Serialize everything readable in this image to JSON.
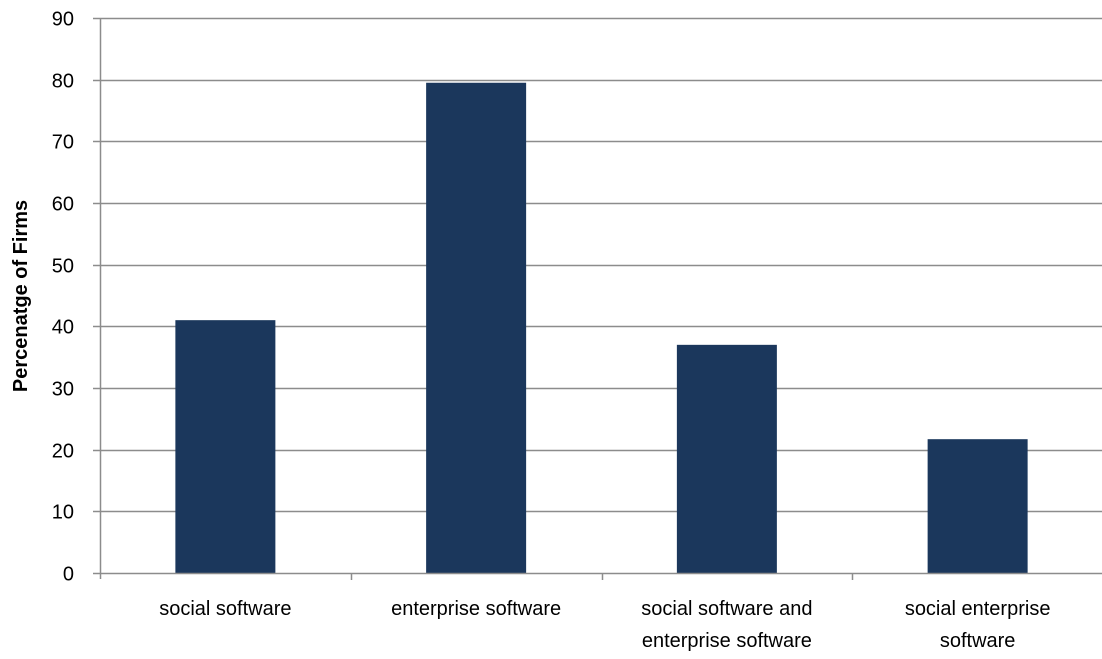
{
  "chart_data": {
    "type": "bar",
    "categories": [
      "social software",
      "enterprise software",
      "social software and enterprise software",
      "social enterprise software"
    ],
    "category_label_lines": [
      [
        "social software"
      ],
      [
        "enterprise software"
      ],
      [
        "social software and",
        "enterprise software"
      ],
      [
        "social enterprise",
        "software"
      ]
    ],
    "values": [
      41,
      79.5,
      37,
      21.7
    ],
    "title": "",
    "xlabel": "",
    "ylabel": "Percenatge of Firms",
    "ylim": [
      0,
      90
    ],
    "yticks": [
      "0",
      "10",
      "20",
      "30",
      "40",
      "50",
      "60",
      "70",
      "80",
      "90"
    ],
    "grid": true,
    "legend": "none",
    "colors": {
      "bar": "#1b375c",
      "grid": "#8c8c8c",
      "axis": "#8c8c8c"
    }
  }
}
